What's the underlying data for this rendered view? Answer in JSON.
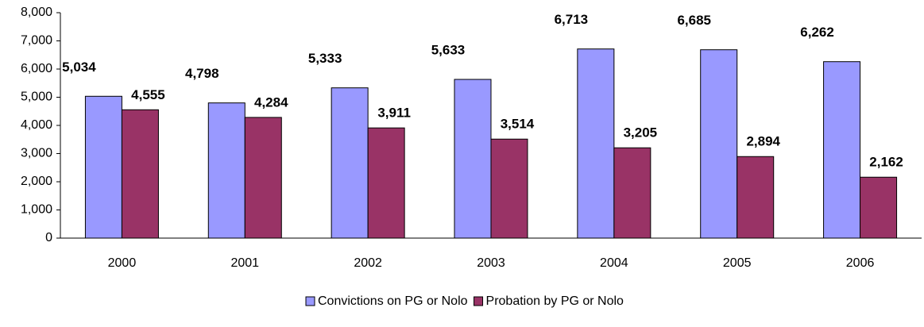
{
  "chart_data": {
    "type": "bar",
    "categories": [
      "2000",
      "2001",
      "2002",
      "2003",
      "2004",
      "2005",
      "2006"
    ],
    "series": [
      {
        "name": "Convictions on PG or Nolo",
        "color": "#9999ff",
        "values": [
          5034,
          4798,
          5333,
          5633,
          6713,
          6685,
          6262
        ],
        "value_labels": [
          "5,034",
          "4,798",
          "5,333",
          "5,633",
          "6,713",
          "6,685",
          "6,262"
        ]
      },
      {
        "name": "Probation by PG or Nolo",
        "color": "#993366",
        "values": [
          4555,
          4284,
          3911,
          3514,
          3205,
          2894,
          2162
        ],
        "value_labels": [
          "4,555",
          "4,284",
          "3,911",
          "3,514",
          "3,205",
          "2,894",
          "2,162"
        ]
      }
    ],
    "ylim": [
      0,
      8000
    ],
    "yticks": [
      0,
      {
        "value": 1000,
        "label": "1,000"
      },
      {
        "value": 2000,
        "label": "2,000"
      },
      {
        "value": 3000,
        "label": "3,000"
      },
      {
        "value": 4000,
        "label": "4,000"
      },
      {
        "value": 5000,
        "label": "5,000"
      },
      {
        "value": 6000,
        "label": "6,000"
      },
      {
        "value": 7000,
        "label": "7,000"
      },
      {
        "value": 8000,
        "label": "8,000"
      }
    ],
    "grid": false,
    "legend": "bottom"
  }
}
